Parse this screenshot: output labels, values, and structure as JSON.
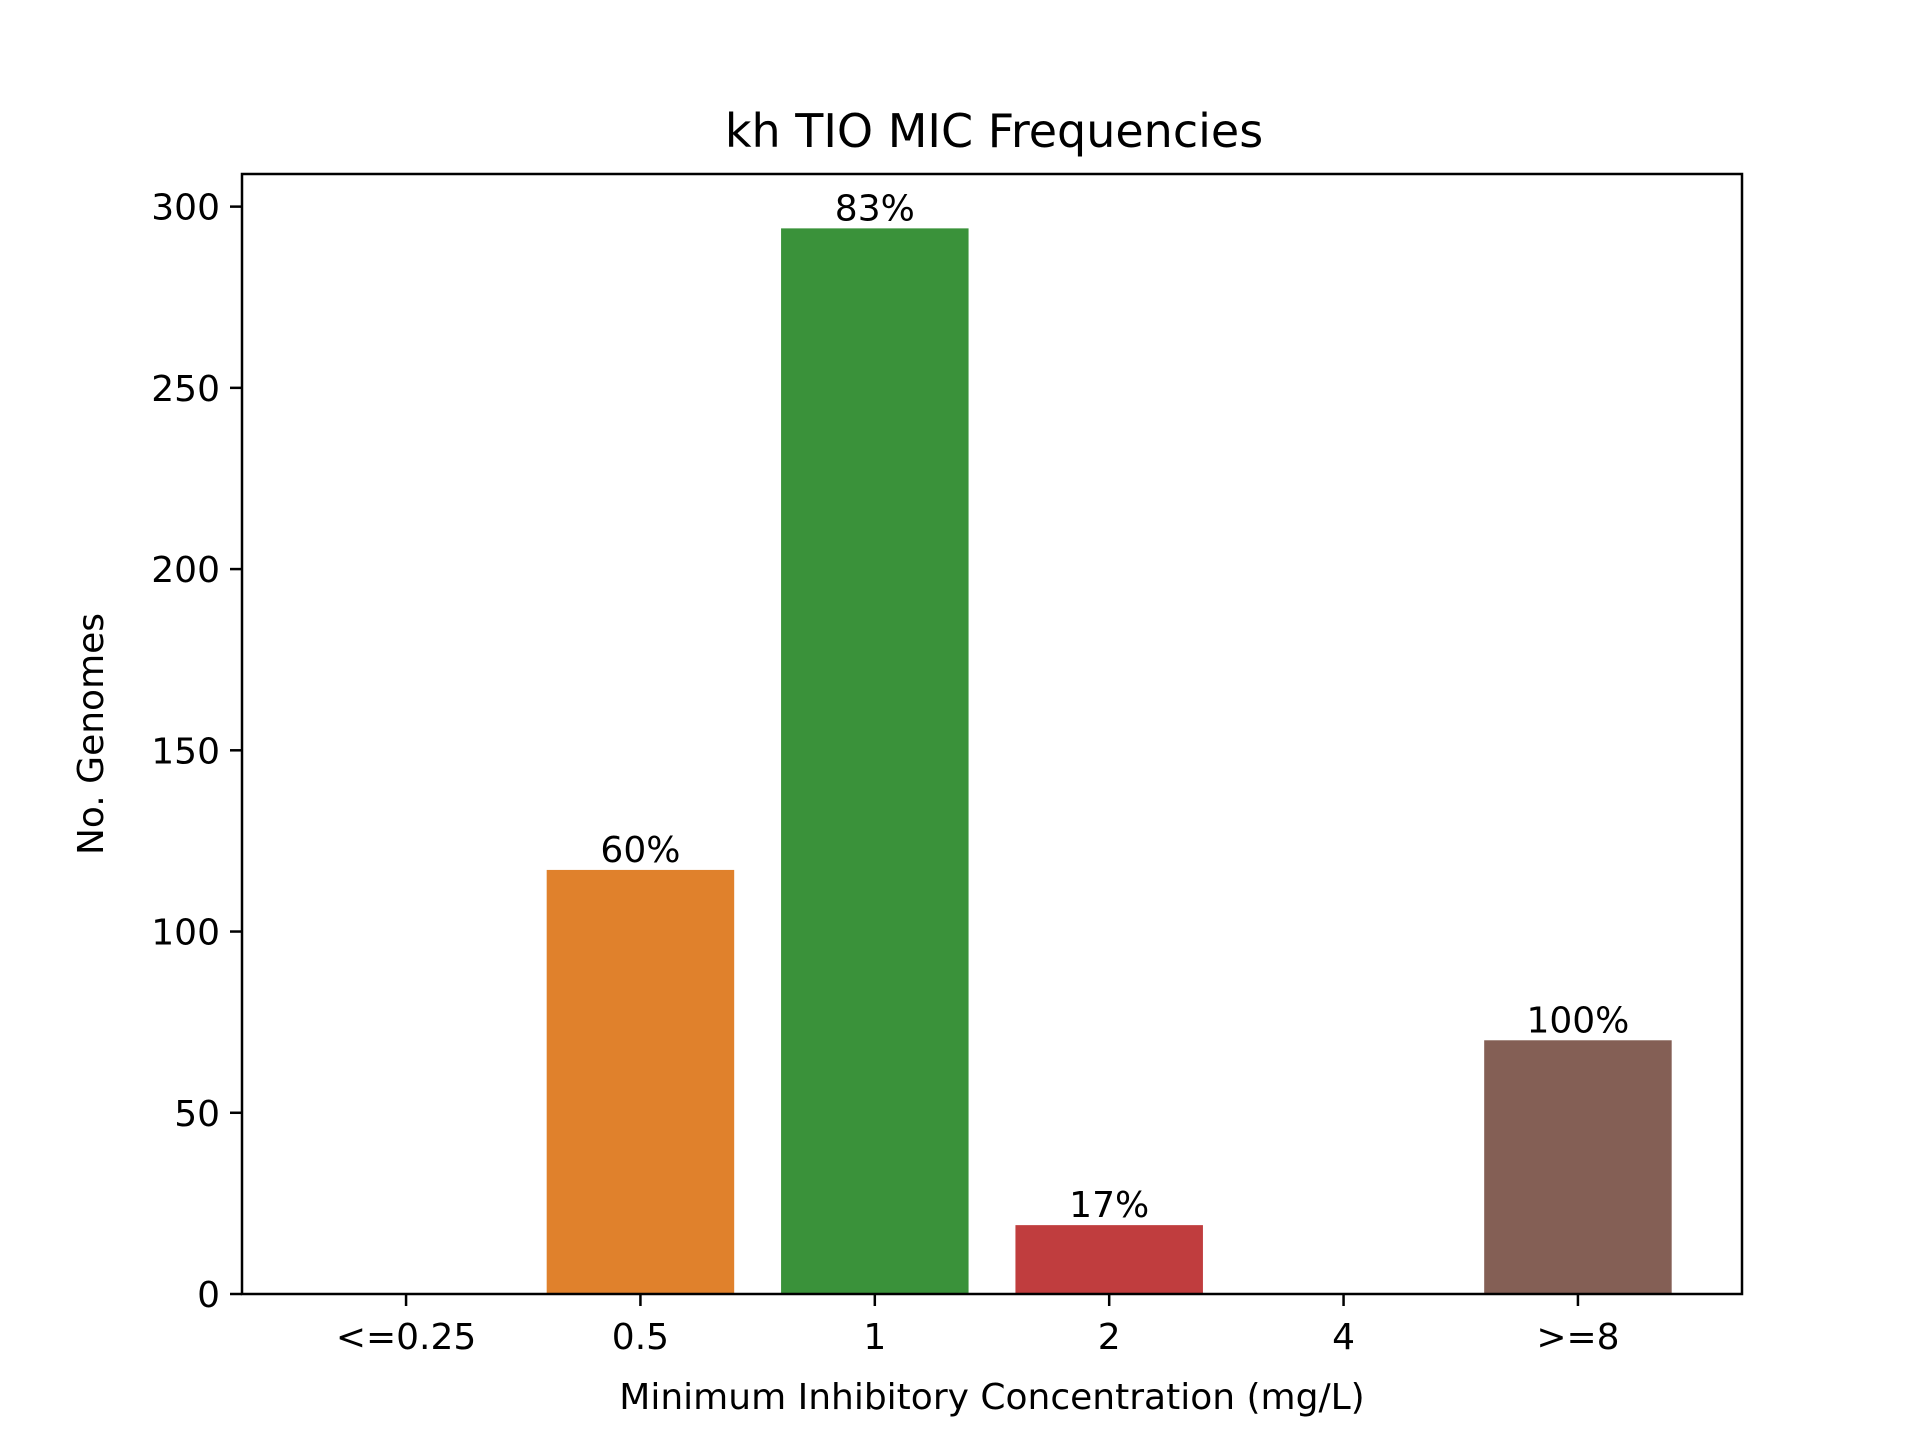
{
  "chart_data": {
    "type": "bar",
    "title": "kh TIO MIC Frequencies",
    "xlabel": "Minimum Inhibitory Concentration (mg/L)",
    "ylabel": "No. Genomes",
    "ylim": [
      0,
      309
    ],
    "yticks": [
      0,
      50,
      100,
      150,
      200,
      250,
      300
    ],
    "categories": [
      "<=0.25",
      "0.5",
      "1",
      "2",
      "4",
      ">=8"
    ],
    "values": [
      0,
      117,
      294,
      19,
      0,
      70
    ],
    "bar_labels": [
      "",
      "60%",
      "83%",
      "17%",
      "",
      "100%"
    ],
    "colors": [
      "#1f77b4",
      "#e0812c",
      "#3a923a",
      "#c03d3e",
      "#9372b2",
      "#845f55"
    ],
    "grid": false,
    "legend": "none"
  }
}
